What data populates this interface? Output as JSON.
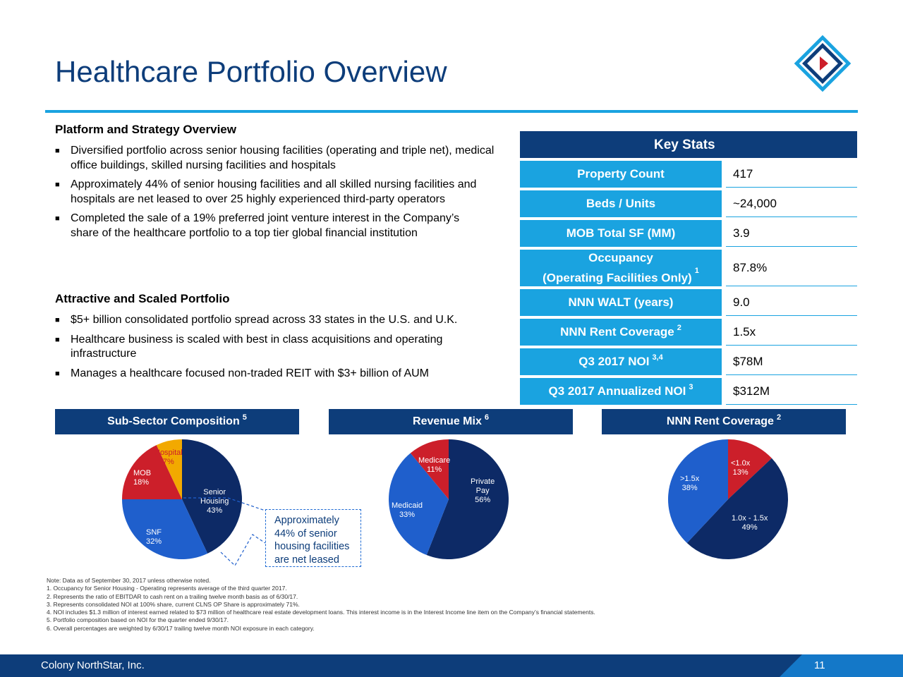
{
  "title": "Healthcare Portfolio Overview",
  "platform": {
    "heading": "Platform and Strategy Overview",
    "bullets": [
      "Diversified portfolio across senior housing facilities (operating and triple net), medical office buildings, skilled nursing facilities and hospitals",
      "Approximately 44% of senior housing facilities and all skilled nursing facilities and hospitals are net leased to over 25 highly experienced third-party operators",
      "Completed the sale of a 19% preferred joint venture interest in the Company’s share of the healthcare portfolio to a top tier global financial institution"
    ]
  },
  "attractive": {
    "heading": "Attractive and Scaled Portfolio",
    "bullets": [
      "$5+ billion consolidated portfolio spread across 33 states in the U.S. and U.K.",
      "Healthcare business is scaled with best in class acquisitions and operating infrastructure",
      "Manages a healthcare focused non-traded REIT with $3+ billion of AUM"
    ]
  },
  "key_stats": {
    "header": "Key Stats",
    "rows": [
      {
        "label": "Property Count",
        "label2": "",
        "sup": "",
        "value": "417"
      },
      {
        "label": "Beds / Units",
        "label2": "",
        "sup": "",
        "value": "~24,000"
      },
      {
        "label": "MOB Total SF (MM)",
        "label2": "",
        "sup": "",
        "value": "3.9"
      },
      {
        "label": "Occupancy",
        "label2": "(Operating Facilities Only)",
        "sup": "1",
        "value": "87.8%"
      },
      {
        "label": "NNN WALT (years)",
        "label2": "",
        "sup": "",
        "value": "9.0"
      },
      {
        "label": "NNN Rent Coverage",
        "label2": "",
        "sup": "2",
        "value": "1.5x"
      },
      {
        "label": "Q3 2017 NOI",
        "label2": "",
        "sup": "3,4",
        "value": "$78M"
      },
      {
        "label": "Q3 2017 Annualized NOI",
        "label2": "",
        "sup": "3",
        "value": "$312M"
      }
    ]
  },
  "charts": {
    "subsector": {
      "title": "Sub-Sector Composition",
      "sup": "5"
    },
    "revenue": {
      "title": "Revenue Mix",
      "sup": "6"
    },
    "coverage": {
      "title": "NNN Rent Coverage",
      "sup": "2"
    }
  },
  "chart_data": [
    {
      "type": "pie",
      "title": "Sub-Sector Composition",
      "labels": [
        "Senior Housing",
        "SNF",
        "MOB",
        "Hospital"
      ],
      "values": [
        43,
        32,
        18,
        7
      ],
      "value_text": [
        "43%",
        "32%",
        "18%",
        "7%"
      ],
      "colors": [
        "#0d2a66",
        "#1f5fcc",
        "#cc1f2a",
        "#f2a900"
      ]
    },
    {
      "type": "pie",
      "title": "Revenue Mix",
      "labels": [
        "Private Pay",
        "Medicaid",
        "Medicare"
      ],
      "values": [
        56,
        33,
        11
      ],
      "value_text": [
        "56%",
        "33%",
        "11%"
      ],
      "colors": [
        "#0d2a66",
        "#1f5fcc",
        "#cc1f2a"
      ]
    },
    {
      "type": "pie",
      "title": "NNN Rent Coverage",
      "labels": [
        "<1.0x",
        "1.0x - 1.5x",
        ">1.5x"
      ],
      "values": [
        13,
        49,
        38
      ],
      "value_text": [
        "13%",
        "49%",
        "38%"
      ],
      "colors": [
        "#cc1f2a",
        "#0d2a66",
        "#1f5fcc"
      ]
    }
  ],
  "pie_text": {
    "senior1": "Senior",
    "senior2": "Housing",
    "private1": "Private",
    "private2": "Pay"
  },
  "callout": {
    "line1": "Approximately",
    "line2": "44% of senior",
    "line3": "housing facilities",
    "line4": "are net leased"
  },
  "notes": [
    "Note: Data as of September 30, 2017 unless otherwise noted.",
    "1.  Occupancy for Senior Housing - Operating represents average of the third quarter 2017.",
    "2.  Represents the ratio of EBITDAR to cash rent on a trailing twelve month basis as of 6/30/17.",
    "3.  Represents consolidated NOI at 100% share, current CLNS OP Share is approximately 71%.",
    "4.  NOI includes $1.3 million of interest earned related to $73 million of healthcare real estate development loans. This interest income is in the Interest Income line item on the Company’s financial statements.",
    "5.  Portfolio composition based on NOI for the quarter ended 9/30/17.",
    "6.  Overall percentages are weighted by 6/30/17 trailing twelve month NOI exposure in each category."
  ],
  "footer": {
    "company": "Colony NorthStar, Inc.",
    "page": "11"
  },
  "colors": {
    "navy": "#0d3d7a",
    "accent": "#1aa3e0",
    "red": "#cc1f2a",
    "gold": "#f2a900",
    "blue": "#1f5fcc"
  }
}
